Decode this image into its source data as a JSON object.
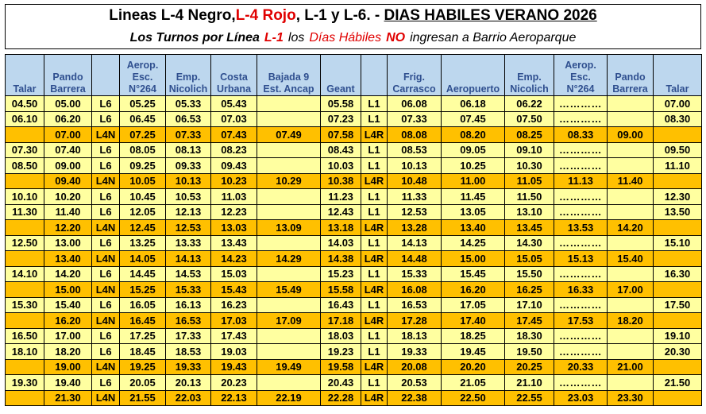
{
  "title": {
    "part1": "Lineas L-4 Negro,",
    "part2": "L-4 Rojo",
    "part3": ", L-1 y L-6. -",
    "part4": "DIAS HABILES  VERANO 2026"
  },
  "subtitle": {
    "part1": "Los Turnos por Línea",
    "part2": "L-1",
    "part3": "los",
    "part4": "Días Hábiles",
    "part5": "NO",
    "part6": "ingresan a Barrio Aeroparque"
  },
  "headers": [
    "Talar",
    "Pando\nBarrera",
    "",
    "Aerop.\nEsc.\nN°264",
    "Emp.\nNicolich",
    "Costa\nUrbana",
    "Bajada 9\nEst. Ancap",
    "Geant",
    "",
    "Frig.\nCarrasco",
    "Aeropuerto",
    "Emp.\nNicolich",
    "Aerop.\nEsc.\nN°264",
    "Pando\nBarrera",
    "Talar"
  ],
  "rows": [
    {
      "type": "l6",
      "cells": [
        "04.50",
        "05.00",
        "L6",
        "05.25",
        "05.33",
        "05.43",
        "",
        "05.58",
        "L1",
        "06.08",
        "06.18",
        "06.22",
        "…………",
        "",
        "07.00"
      ]
    },
    {
      "type": "l6",
      "cells": [
        "06.10",
        "06.20",
        "L6",
        "06.45",
        "06.53",
        "07.03",
        "",
        "07.23",
        "L1",
        "07.33",
        "07.45",
        "07.50",
        "…………",
        "",
        "08.30"
      ]
    },
    {
      "type": "l4n",
      "cells": [
        "",
        "07.00",
        "L4N",
        "07.25",
        "07.33",
        "07.43",
        "07.49",
        "07.58",
        "L4R",
        "08.08",
        "08.20",
        "08.25",
        "08.33",
        "09.00",
        ""
      ]
    },
    {
      "type": "l6",
      "cells": [
        "07.30",
        "07.40",
        "L6",
        "08.05",
        "08.13",
        "08.23",
        "",
        "08.43",
        "L1",
        "08.53",
        "09.05",
        "09.10",
        "…………",
        "",
        "09.50"
      ]
    },
    {
      "type": "l6",
      "cells": [
        "08.50",
        "09.00",
        "L6",
        "09.25",
        "09.33",
        "09.43",
        "",
        "10.03",
        "L1",
        "10.13",
        "10.25",
        "10.30",
        "…………",
        "",
        "11.10"
      ]
    },
    {
      "type": "l4n",
      "cells": [
        "",
        "09.40",
        "L4N",
        "10.05",
        "10.13",
        "10.23",
        "10.29",
        "10.38",
        "L4R",
        "10.48",
        "11.00",
        "11.05",
        "11.13",
        "11.40",
        ""
      ]
    },
    {
      "type": "l6",
      "cells": [
        "10.10",
        "10.20",
        "L6",
        "10.45",
        "10.53",
        "11.03",
        "",
        "11.23",
        "L1",
        "11.33",
        "11.45",
        "11.50",
        "…………",
        "",
        "12.30"
      ]
    },
    {
      "type": "l6",
      "cells": [
        "11.30",
        "11.40",
        "L6",
        "12.05",
        "12.13",
        "12.23",
        "",
        "12.43",
        "L1",
        "12.53",
        "13.05",
        "13.10",
        "…………",
        "",
        "13.50"
      ]
    },
    {
      "type": "l4n",
      "cells": [
        "",
        "12.20",
        "L4N",
        "12.45",
        "12.53",
        "13.03",
        "13.09",
        "13.18",
        "L4R",
        "13.28",
        "13.40",
        "13.45",
        "13.53",
        "14.20",
        ""
      ]
    },
    {
      "type": "l6",
      "cells": [
        "12.50",
        "13.00",
        "L6",
        "13.25",
        "13.33",
        "13.43",
        "",
        "14.03",
        "L1",
        "14.13",
        "14.25",
        "14.30",
        "…………",
        "",
        "15.10"
      ]
    },
    {
      "type": "l4n",
      "cells": [
        "",
        "13.40",
        "L4N",
        "14.05",
        "14.13",
        "14.23",
        "14.29",
        "14.38",
        "L4R",
        "14.48",
        "15.00",
        "15.05",
        "15.13",
        "15.40",
        ""
      ]
    },
    {
      "type": "l6",
      "cells": [
        "14.10",
        "14.20",
        "L6",
        "14.45",
        "14.53",
        "15.03",
        "",
        "15.23",
        "L1",
        "15.33",
        "15.45",
        "15.50",
        "…………",
        "",
        "16.30"
      ]
    },
    {
      "type": "l4n",
      "cells": [
        "",
        "15.00",
        "L4N",
        "15.25",
        "15.33",
        "15.43",
        "15.49",
        "15.58",
        "L4R",
        "16.08",
        "16.20",
        "16.25",
        "16.33",
        "17.00",
        ""
      ]
    },
    {
      "type": "l6",
      "cells": [
        "15.30",
        "15.40",
        "L6",
        "16.05",
        "16.13",
        "16.23",
        "",
        "16.43",
        "L1",
        "16.53",
        "17.05",
        "17.10",
        "…………",
        "",
        "17.50"
      ]
    },
    {
      "type": "l4n",
      "cells": [
        "",
        "16.20",
        "L4N",
        "16.45",
        "16.53",
        "17.03",
        "17.09",
        "17.18",
        "L4R",
        "17.28",
        "17.40",
        "17.45",
        "17.53",
        "18.20",
        ""
      ]
    },
    {
      "type": "l6",
      "cells": [
        "16.50",
        "17.00",
        "L6",
        "17.25",
        "17.33",
        "17.43",
        "",
        "18.03",
        "L1",
        "18.13",
        "18.25",
        "18.30",
        "…………",
        "",
        "19.10"
      ]
    },
    {
      "type": "l6",
      "cells": [
        "18.10",
        "18.20",
        "L6",
        "18.45",
        "18.53",
        "19.03",
        "",
        "19.23",
        "L1",
        "19.33",
        "19.45",
        "19.50",
        "…………",
        "",
        "20.30"
      ]
    },
    {
      "type": "l4n",
      "cells": [
        "",
        "19.00",
        "L4N",
        "19.25",
        "19.33",
        "19.43",
        "19.49",
        "19.58",
        "L4R",
        "20.08",
        "20.20",
        "20.25",
        "20.33",
        "21.00",
        ""
      ]
    },
    {
      "type": "l6",
      "cells": [
        "19.30",
        "19.40",
        "L6",
        "20.05",
        "20.13",
        "20.23",
        "",
        "20.43",
        "L1",
        "20.53",
        "21.05",
        "21.10",
        "…………",
        "",
        "21.50"
      ]
    },
    {
      "type": "l4n",
      "cells": [
        "",
        "21.30",
        "L4N",
        "21.55",
        "22.03",
        "22.13",
        "22.19",
        "22.28",
        "L4R",
        "22.38",
        "22.50",
        "22.55",
        "23.03",
        "23.30",
        ""
      ]
    }
  ],
  "colors": {
    "l6_row": "#ffffa0",
    "l4n_row": "#ffc000",
    "header_bg": "#bdd7ee",
    "header_text": "#2f4f8f",
    "red_text": "#e00000"
  }
}
